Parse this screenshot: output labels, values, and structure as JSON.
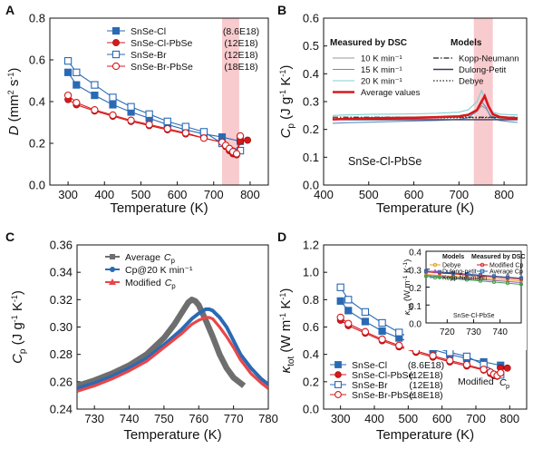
{
  "colors": {
    "blue": "#2a6ab4",
    "red": "#d7191c",
    "gray": "#6e6e6e",
    "highlight": "#f7c2c6"
  },
  "chart_data": [
    {
      "panel": "A",
      "type": "line",
      "xlabel": "Temperature (K)",
      "ylabel": "D (mm² s⁻¹)",
      "xlim": [
        250,
        850
      ],
      "ylim": [
        0.0,
        0.8
      ],
      "xticks": [
        300,
        400,
        500,
        600,
        700,
        800
      ],
      "yticks": [
        0.0,
        0.2,
        0.4,
        0.6,
        0.8
      ],
      "yticklabels": [
        "0.0",
        "0.2",
        "0.4",
        "0.6",
        "0.8"
      ],
      "highlight_band": [
        723,
        770
      ],
      "legend": {
        "placement": "top-right"
      },
      "series": [
        {
          "name": "SnSe-Cl",
          "carrier": "(8.6E18)",
          "marker": "square-filled",
          "color": "#2a6ab4",
          "x": [
            300,
            323,
            373,
            423,
            473,
            523,
            573,
            623,
            673,
            723,
            773
          ],
          "y": [
            0.54,
            0.48,
            0.43,
            0.385,
            0.35,
            0.32,
            0.29,
            0.265,
            0.245,
            0.23,
            0.21
          ]
        },
        {
          "name": "SnSe-Cl-PbSe",
          "carrier": "(12E18)",
          "marker": "circle-filled",
          "color": "#d7191c",
          "x": [
            300,
            323,
            373,
            423,
            473,
            523,
            573,
            623,
            673,
            723,
            733,
            743,
            753,
            763,
            773,
            793
          ],
          "y": [
            0.41,
            0.385,
            0.355,
            0.33,
            0.305,
            0.285,
            0.265,
            0.245,
            0.225,
            0.205,
            0.185,
            0.165,
            0.15,
            0.145,
            0.21,
            0.215
          ]
        },
        {
          "name": "SnSe-Br",
          "carrier": "(12E18)",
          "marker": "square-open",
          "color": "#2a6ab4",
          "x": [
            300,
            323,
            373,
            423,
            473,
            523,
            573,
            623,
            673,
            723,
            773
          ],
          "y": [
            0.595,
            0.54,
            0.48,
            0.42,
            0.375,
            0.34,
            0.305,
            0.28,
            0.255,
            0.2,
            0.165
          ]
        },
        {
          "name": "SnSe-Br-PbSe",
          "carrier": "(18E18)",
          "marker": "circle-open",
          "color": "#d7191c",
          "x": [
            300,
            323,
            373,
            423,
            473,
            523,
            573,
            623,
            673,
            723,
            733,
            743,
            753,
            763,
            773
          ],
          "y": [
            0.43,
            0.395,
            0.36,
            0.335,
            0.31,
            0.29,
            0.27,
            0.25,
            0.225,
            0.205,
            0.19,
            0.175,
            0.16,
            0.15,
            0.235
          ]
        }
      ]
    },
    {
      "panel": "B",
      "type": "line",
      "xlabel": "Temperature (K)",
      "ylabel": "Cp (J g⁻¹ K⁻¹)",
      "xlim": [
        400,
        850
      ],
      "ylim": [
        0.0,
        0.6
      ],
      "xticks": [
        400,
        500,
        600,
        700,
        800
      ],
      "yticks": [
        0.0,
        0.1,
        0.2,
        0.3,
        0.4,
        0.5,
        0.6
      ],
      "yticklabels": [
        "0.0",
        "0.1",
        "0.2",
        "0.3",
        "0.4",
        "0.5",
        "0.6"
      ],
      "highlight_band": [
        733,
        775
      ],
      "legend_left_title": "Measured by DSC",
      "legend_right_title": "Models",
      "sample_label": "SnSe-Cl-PbSe",
      "series": [
        {
          "name": "10 K min⁻¹",
          "style": "solid",
          "color": "#9a9a9a",
          "x": [
            420,
            450,
            500,
            550,
            600,
            650,
            700,
            720,
            740,
            750,
            760,
            770,
            790,
            810,
            830
          ],
          "y": [
            0.235,
            0.237,
            0.24,
            0.24,
            0.241,
            0.243,
            0.246,
            0.25,
            0.265,
            0.285,
            0.275,
            0.25,
            0.24,
            0.238,
            0.236
          ]
        },
        {
          "name": "15 K min⁻¹",
          "style": "solid",
          "color": "#5e8fc9",
          "x": [
            420,
            450,
            500,
            550,
            600,
            650,
            700,
            720,
            740,
            750,
            760,
            770,
            790,
            810,
            830
          ],
          "y": [
            0.222,
            0.224,
            0.226,
            0.228,
            0.23,
            0.232,
            0.236,
            0.242,
            0.265,
            0.3,
            0.28,
            0.245,
            0.232,
            0.228,
            0.225
          ]
        },
        {
          "name": "20 K min⁻¹",
          "style": "solid",
          "color": "#7fcfcf",
          "x": [
            420,
            450,
            500,
            550,
            600,
            650,
            700,
            720,
            740,
            750,
            760,
            770,
            790,
            810,
            830
          ],
          "y": [
            0.25,
            0.252,
            0.254,
            0.255,
            0.256,
            0.258,
            0.262,
            0.27,
            0.3,
            0.34,
            0.3,
            0.265,
            0.255,
            0.253,
            0.252
          ]
        },
        {
          "name": "Average values",
          "style": "bold",
          "color": "#d7191c",
          "x": [
            420,
            450,
            500,
            550,
            600,
            650,
            700,
            720,
            740,
            750,
            757,
            765,
            775,
            790,
            810,
            830
          ],
          "y": [
            0.236,
            0.238,
            0.24,
            0.241,
            0.242,
            0.244,
            0.247,
            0.252,
            0.27,
            0.3,
            0.32,
            0.285,
            0.255,
            0.245,
            0.242,
            0.24
          ]
        },
        {
          "name": "Kopp-Neumann",
          "style": "dashdot",
          "color": "#222222",
          "x": [
            420,
            830
          ],
          "y": [
            0.244,
            0.244
          ]
        },
        {
          "name": "Dulong-Petit",
          "style": "solid-dark",
          "color": "#3a3a5a",
          "x": [
            420,
            830
          ],
          "y": [
            0.235,
            0.235
          ]
        },
        {
          "name": "Debye",
          "style": "dotted",
          "color": "#222222",
          "x": [
            420,
            830
          ],
          "y": [
            0.239,
            0.243
          ]
        }
      ]
    },
    {
      "panel": "C",
      "type": "line",
      "xlabel": "Temperature (K)",
      "ylabel": "Cp (J g⁻¹ K⁻¹)",
      "xlim": [
        725,
        780
      ],
      "ylim": [
        0.24,
        0.36
      ],
      "xticks": [
        730,
        740,
        750,
        760,
        770,
        780
      ],
      "yticks": [
        0.24,
        0.26,
        0.28,
        0.3,
        0.32,
        0.34,
        0.36
      ],
      "yticklabels": [
        "0.24",
        "0.26",
        "0.28",
        "0.30",
        "0.32",
        "0.34",
        "0.36"
      ],
      "legend": {
        "placement": "top-left"
      },
      "series": [
        {
          "name": "Average",
          "name_suffix": "Cp",
          "style": "thick",
          "color": "#6e6e6e",
          "x": [
            725,
            730,
            735,
            740,
            745,
            750,
            753,
            755,
            757,
            758,
            759,
            760,
            762,
            764,
            766,
            768,
            770,
            772,
            773
          ],
          "y": [
            0.257,
            0.261,
            0.266,
            0.272,
            0.28,
            0.292,
            0.302,
            0.31,
            0.318,
            0.32,
            0.319,
            0.316,
            0.305,
            0.293,
            0.28,
            0.27,
            0.263,
            0.259,
            0.257
          ]
        },
        {
          "name": "Cp@20 K min⁻¹",
          "style": "thick",
          "color": "#2a6ab4",
          "x": [
            725,
            730,
            735,
            740,
            745,
            750,
            755,
            758,
            760,
            762,
            763,
            764,
            766,
            768,
            770,
            772,
            775,
            778,
            780
          ],
          "y": [
            0.255,
            0.259,
            0.264,
            0.27,
            0.277,
            0.287,
            0.298,
            0.306,
            0.31,
            0.313,
            0.313,
            0.312,
            0.307,
            0.3,
            0.29,
            0.28,
            0.27,
            0.262,
            0.258
          ]
        },
        {
          "name": "Modified",
          "name_suffix": "Cp",
          "style": "thick",
          "color": "#e8474a",
          "x": [
            725,
            730,
            735,
            740,
            745,
            750,
            755,
            758,
            760,
            762,
            763,
            764,
            766,
            768,
            770,
            772,
            775,
            778,
            780
          ],
          "y": [
            0.253,
            0.257,
            0.262,
            0.268,
            0.275,
            0.285,
            0.295,
            0.302,
            0.305,
            0.307,
            0.307,
            0.306,
            0.3,
            0.293,
            0.285,
            0.276,
            0.266,
            0.259,
            0.255
          ]
        }
      ]
    },
    {
      "panel": "D",
      "type": "line",
      "xlabel": "Temperature (K)",
      "ylabel": "κtot (W m⁻¹ K⁻¹)",
      "xlim": [
        250,
        850
      ],
      "ylim": [
        0.0,
        1.2
      ],
      "xticks": [
        300,
        400,
        500,
        600,
        700,
        800
      ],
      "yticks": [
        0.0,
        0.2,
        0.4,
        0.6,
        0.8,
        1.0,
        1.2
      ],
      "yticklabels": [
        "0.0",
        "0.2",
        "0.4",
        "0.6",
        "0.8",
        "1.0",
        "1.2"
      ],
      "legend": {
        "placement": "bottom-left"
      },
      "annotation": "Modified Cp",
      "series": [
        {
          "name": "SnSe-Cl",
          "carrier": "(8.6E18)",
          "marker": "square-filled",
          "color": "#2a6ab4",
          "x": [
            300,
            323,
            373,
            423,
            473,
            523,
            573,
            623,
            673,
            723,
            773
          ],
          "y": [
            0.79,
            0.72,
            0.64,
            0.57,
            0.52,
            0.475,
            0.435,
            0.4,
            0.37,
            0.345,
            0.32
          ]
        },
        {
          "name": "SnSe-Cl-PbSe",
          "carrier": "(12E18)",
          "marker": "circle-filled",
          "color": "#d7191c",
          "x": [
            300,
            323,
            373,
            423,
            473,
            523,
            573,
            623,
            673,
            723,
            743,
            753,
            763,
            773,
            793
          ],
          "y": [
            0.65,
            0.61,
            0.555,
            0.5,
            0.455,
            0.415,
            0.38,
            0.345,
            0.315,
            0.285,
            0.26,
            0.245,
            0.24,
            0.3,
            0.3
          ]
        },
        {
          "name": "SnSe-Br",
          "carrier": "(12E18)",
          "marker": "square-open",
          "color": "#2a6ab4",
          "x": [
            300,
            323,
            373,
            423,
            473,
            523,
            573,
            623,
            673,
            723,
            773
          ],
          "y": [
            0.89,
            0.8,
            0.71,
            0.63,
            0.56,
            0.5,
            0.455,
            0.415,
            0.385,
            0.325,
            0.25
          ]
        },
        {
          "name": "SnSe-Br-PbSe",
          "carrier": "(18E18)",
          "marker": "circle-open",
          "color": "#d7191c",
          "x": [
            300,
            323,
            373,
            423,
            473,
            523,
            573,
            623,
            673,
            723,
            743,
            753,
            763,
            773
          ],
          "y": [
            0.67,
            0.625,
            0.565,
            0.51,
            0.465,
            0.425,
            0.39,
            0.355,
            0.325,
            0.29,
            0.27,
            0.255,
            0.245,
            0.265
          ]
        }
      ],
      "inset": {
        "ylabel": "κtot (W m⁻¹ K⁻¹)",
        "xlim": [
          712,
          748
        ],
        "ylim": [
          0.0,
          0.4
        ],
        "xticks": [
          720,
          730,
          740
        ],
        "yticks": [
          0.0,
          0.1,
          0.2,
          0.3,
          0.4
        ],
        "yticklabels": [
          "0.0",
          "0.1",
          "0.2",
          "0.3",
          "0.4"
        ],
        "legend_left_title": "Models",
        "legend_right_title": "Measured by DSC",
        "sample_label": "SnSe-Cl-PbSe",
        "series": [
          {
            "name": "Debye",
            "color": "#e0a020",
            "marker": "circle",
            "x": [
              712,
              748
            ],
            "y": [
              0.27,
              0.235
            ]
          },
          {
            "name": "Dulong-petit",
            "color": "#9b59b6",
            "marker": "triangle",
            "x": [
              712,
              748
            ],
            "y": [
              0.265,
              0.225
            ]
          },
          {
            "name": "Kopp-Neumann",
            "color": "#3fa34d",
            "marker": "circle",
            "x": [
              712,
              748
            ],
            "y": [
              0.26,
              0.215
            ]
          },
          {
            "name": "Modified Cp",
            "color": "#d7191c",
            "marker": "circle",
            "x": [
              712,
              748
            ],
            "y": [
              0.285,
              0.245
            ]
          },
          {
            "name": "Average Cp",
            "color": "#2a6ab4",
            "marker": "square",
            "x": [
              712,
              748
            ],
            "y": [
              0.29,
              0.25
            ]
          }
        ]
      }
    }
  ]
}
